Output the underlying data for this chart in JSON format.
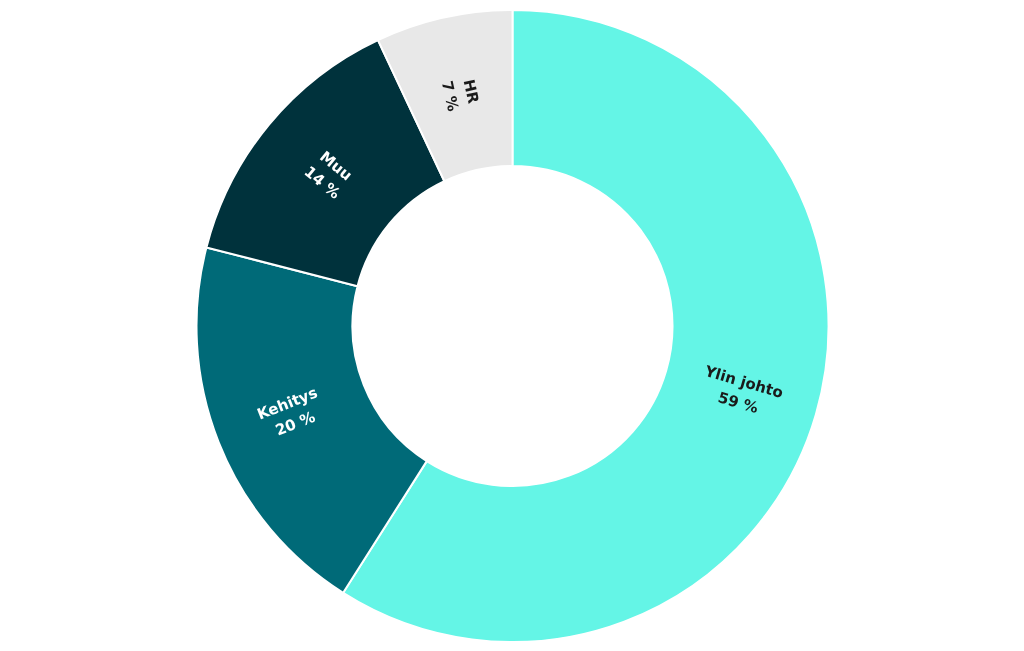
{
  "chart_data": {
    "type": "donut",
    "categories": [
      "Ylin johto",
      "Kehitys",
      "Muu",
      "HR"
    ],
    "values": [
      59,
      20,
      14,
      7
    ],
    "colors": [
      "#64f5e6",
      "#006a78",
      "#00323c",
      "#e8e8e8"
    ],
    "value_labels": [
      "59 %",
      "20 %",
      "14 %",
      "7 %"
    ]
  }
}
